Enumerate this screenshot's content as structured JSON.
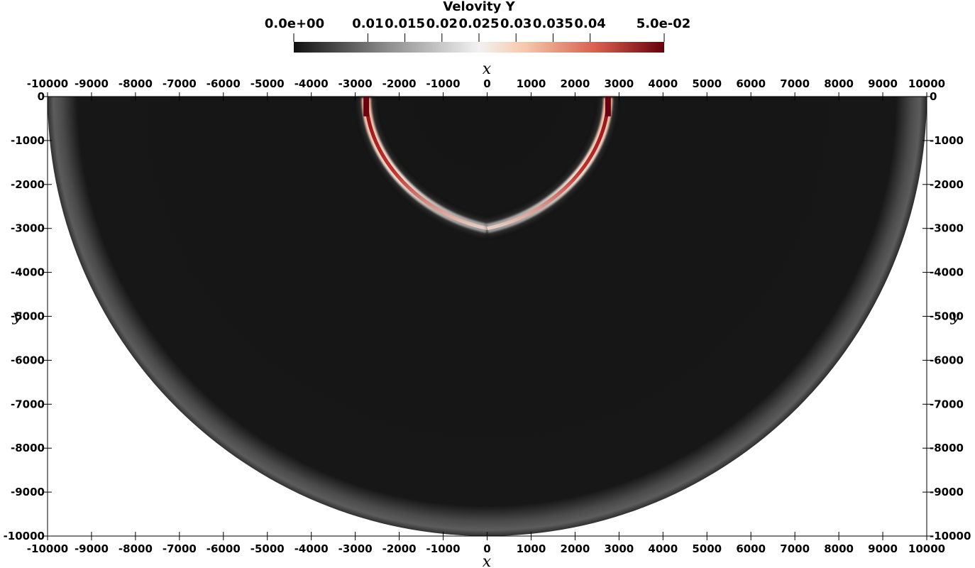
{
  "chart_data": {
    "type": "heatmap",
    "title": "Velovity Y",
    "xlabel": "x",
    "ylabel": "y",
    "xlim": [
      -10000,
      10000
    ],
    "ylim": [
      -10000,
      0
    ],
    "x_ticks": [
      -10000,
      -9000,
      -8000,
      -7000,
      -6000,
      -5000,
      -4000,
      -3000,
      -2000,
      -1000,
      0,
      1000,
      2000,
      3000,
      4000,
      5000,
      6000,
      7000,
      8000,
      9000,
      10000
    ],
    "y_ticks": [
      0,
      -1000,
      -2000,
      -3000,
      -4000,
      -5000,
      -6000,
      -7000,
      -8000,
      -9000,
      -10000
    ],
    "domain_shape": "half-disk of radius 10000 centered at (0, 0), y <= 0",
    "colorbar": {
      "range": [
        0.0,
        0.05
      ],
      "min_label": "0.0e+00",
      "max_label": "5.0e-02",
      "tick_values": [
        0.01,
        0.015,
        0.02,
        0.025,
        0.03,
        0.035,
        0.04
      ],
      "tick_labels": [
        "0.01",
        "0.015",
        "0.02",
        "0.025",
        "0.03",
        "0.035",
        "0.04"
      ],
      "colormap": [
        "#111111",
        "#8c8c8c",
        "#f2f2f2",
        "#f7c9ad",
        "#d75d4a",
        "#67000d"
      ]
    },
    "field_features": [
      {
        "feature": "background",
        "value": 0.0
      },
      {
        "feature": "outer boundary wavefront",
        "radius": 9700,
        "value": 0.01
      },
      {
        "feature": "left arc wavefront",
        "x_range": [
          -2750,
          0
        ],
        "y_range": [
          -3000,
          0
        ],
        "peak_value": 0.05
      },
      {
        "feature": "right arc wavefront",
        "x_range": [
          0,
          2750
        ],
        "y_range": [
          -3000,
          0
        ],
        "peak_value": 0.05
      }
    ]
  }
}
